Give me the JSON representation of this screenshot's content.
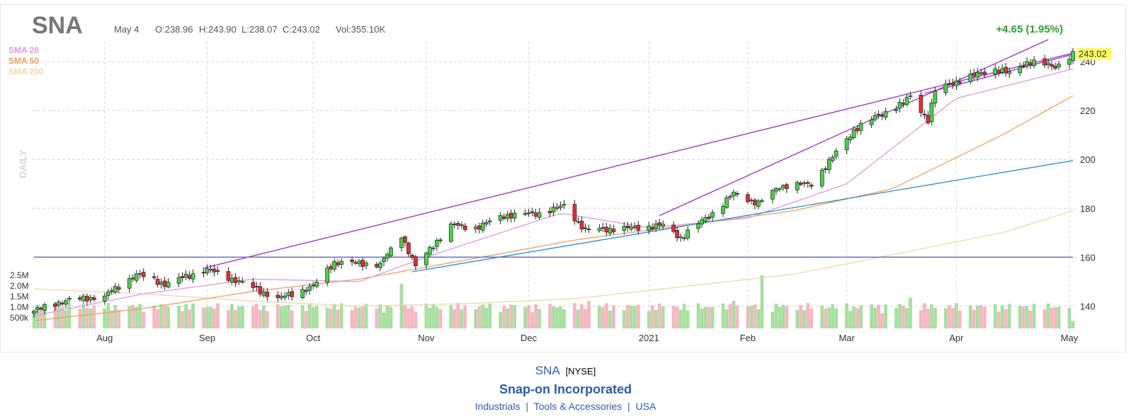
{
  "header": {
    "ticker": "SNA",
    "date": "May 4",
    "open": "O:238.96",
    "high": "H:243.90",
    "low": "L:238.07",
    "close": "C:243.02",
    "volume": "Vol:355.10K",
    "change": "+4.65 (1.95%)",
    "last_price": "243.02",
    "period": "DAILY"
  },
  "legend": [
    {
      "label": "SMA 20",
      "color": "#dd99dd"
    },
    {
      "label": "SMA 50",
      "color": "#f0a060"
    },
    {
      "label": "SMA 200",
      "color": "#f3d6a8"
    }
  ],
  "footer": {
    "ticker": "SNA",
    "exchange": "[NYSE]",
    "company": "Snap-on Incorporated",
    "sector": "Industrials",
    "industry": "Tools & Accessories",
    "country": "USA",
    "separator": "|"
  },
  "chart_data": {
    "type": "candlestick",
    "title": "SNA",
    "y_axis": {
      "ticks": [
        140,
        160,
        180,
        200,
        220,
        240
      ],
      "range": [
        132,
        249
      ],
      "side": "right"
    },
    "volume_axis": {
      "tick_labels": [
        "500k",
        "1.0M",
        "1.5M",
        "2.0M",
        "2.5M"
      ],
      "tick_values": [
        0.5,
        1.0,
        1.5,
        2.0,
        2.5
      ],
      "unit": "M"
    },
    "x_axis": {
      "labels": [
        "Aug",
        "Sep",
        "Oct",
        "Nov",
        "Dec",
        "2021",
        "Feb",
        "Mar",
        "Apr",
        "May"
      ],
      "label_dates": [
        "2020-08-03",
        "2020-09-01",
        "2020-10-01",
        "2020-11-02",
        "2020-12-01",
        "2021-01-04",
        "2021-02-01",
        "2021-03-01",
        "2021-04-01",
        "2021-05-03"
      ]
    },
    "price_path": [
      [
        "2020-07-14",
        138
      ],
      [
        "2020-07-22",
        142
      ],
      [
        "2020-08-03",
        144
      ],
      [
        "2020-08-12",
        153
      ],
      [
        "2020-08-20",
        149
      ],
      [
        "2020-09-01",
        155
      ],
      [
        "2020-09-10",
        150
      ],
      [
        "2020-09-21",
        143
      ],
      [
        "2020-10-01",
        148
      ],
      [
        "2020-10-07",
        158
      ],
      [
        "2020-10-20",
        157
      ],
      [
        "2020-10-26",
        169
      ],
      [
        "2020-10-30",
        156
      ],
      [
        "2020-11-04",
        165
      ],
      [
        "2020-11-09",
        173
      ],
      [
        "2020-11-16",
        172
      ],
      [
        "2020-11-24",
        177
      ],
      [
        "2020-12-04",
        178
      ],
      [
        "2020-12-11",
        181
      ],
      [
        "2020-12-17",
        171
      ],
      [
        "2020-12-31",
        172
      ],
      [
        "2021-01-08",
        173
      ],
      [
        "2021-01-13",
        168
      ],
      [
        "2021-01-22",
        178
      ],
      [
        "2021-01-28",
        186
      ],
      [
        "2021-02-04",
        182
      ],
      [
        "2021-02-10",
        189
      ],
      [
        "2021-02-19",
        190
      ],
      [
        "2021-02-24",
        199
      ],
      [
        "2021-03-03",
        212
      ],
      [
        "2021-03-10",
        218
      ],
      [
        "2021-03-17",
        223
      ],
      [
        "2021-03-19",
        226
      ],
      [
        "2021-03-24",
        216
      ],
      [
        "2021-03-26",
        228
      ],
      [
        "2021-04-01",
        232
      ],
      [
        "2021-04-12",
        237
      ],
      [
        "2021-04-16",
        235
      ],
      [
        "2021-04-21",
        240
      ],
      [
        "2021-04-29",
        238
      ],
      [
        "2021-05-04",
        243.02
      ]
    ],
    "sma20": [
      [
        "2020-07-14",
        136
      ],
      [
        "2020-08-14",
        145
      ],
      [
        "2020-09-14",
        151
      ],
      [
        "2020-10-14",
        150
      ],
      [
        "2020-11-02",
        160
      ],
      [
        "2020-12-10",
        178
      ],
      [
        "2021-01-04",
        172
      ],
      [
        "2021-02-01",
        176
      ],
      [
        "2021-03-01",
        190
      ],
      [
        "2021-04-01",
        225
      ],
      [
        "2021-05-04",
        237
      ]
    ],
    "sma50": [
      [
        "2020-07-14",
        134
      ],
      [
        "2020-08-14",
        139
      ],
      [
        "2020-09-14",
        146
      ],
      [
        "2020-10-14",
        151
      ],
      [
        "2020-11-14",
        159
      ],
      [
        "2020-12-14",
        167
      ],
      [
        "2021-01-14",
        173
      ],
      [
        "2021-02-14",
        179
      ],
      [
        "2021-03-14",
        188
      ],
      [
        "2021-04-14",
        210
      ],
      [
        "2021-05-04",
        226
      ]
    ],
    "sma200": [
      [
        "2020-07-14",
        147
      ],
      [
        "2020-08-14",
        145
      ],
      [
        "2020-09-14",
        142
      ],
      [
        "2020-10-14",
        140
      ],
      [
        "2020-11-14",
        141
      ],
      [
        "2020-12-14",
        143
      ],
      [
        "2021-01-14",
        148
      ],
      [
        "2021-02-14",
        153
      ],
      [
        "2021-03-14",
        161
      ],
      [
        "2021-04-14",
        170
      ],
      [
        "2021-05-04",
        179
      ]
    ],
    "trendlines": [
      {
        "color": "#9b30c8",
        "points": [
          [
            "2020-08-31",
            155.5
          ],
          [
            "2021-05-04",
            243.5
          ]
        ]
      },
      {
        "color": "#9b30c8",
        "points": [
          [
            "2021-01-07",
            177
          ],
          [
            "2021-04-27",
            249
          ]
        ]
      },
      {
        "color": "#9b30c8",
        "points": [
          [
            "2021-03-23",
            227
          ],
          [
            "2021-05-04",
            243
          ]
        ]
      },
      {
        "color": "#2a8fd4",
        "points": [
          [
            "2020-10-29",
            154
          ],
          [
            "2021-05-04",
            199.5
          ]
        ]
      },
      {
        "color": "#6666bb",
        "points": [
          [
            "2020-07-14",
            160
          ],
          [
            "2021-05-04",
            160
          ]
        ]
      }
    ],
    "volume_spikes": [
      [
        "2020-10-26",
        2.1
      ],
      [
        "2020-12-18",
        1.3
      ],
      [
        "2021-01-28",
        1.3
      ],
      [
        "2021-02-05",
        2.5
      ],
      [
        "2021-03-19",
        1.45
      ]
    ],
    "volume_baseline": 0.7,
    "grid": true
  }
}
